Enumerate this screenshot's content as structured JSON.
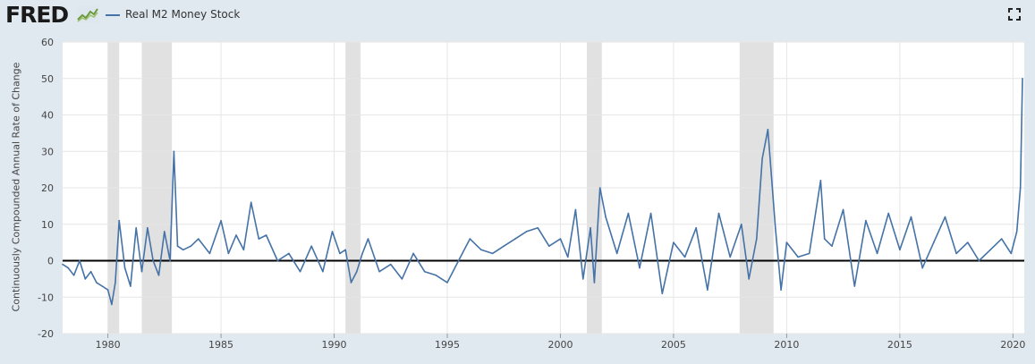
{
  "header": {
    "logo_text": "FRED",
    "logo_icon": "fred-chart-icon",
    "expand_icon": "expand-icon"
  },
  "colors": {
    "series": "#4572a7",
    "recession": "#e1e1e1",
    "background": "#e1e9f0",
    "plot": "#ffffff",
    "zero_line": "#000000"
  },
  "chart_data": {
    "type": "line",
    "xlabel": "",
    "ylabel": "Continuously Compounded Annual Rate of Change",
    "ylim": [
      -20,
      60
    ],
    "xlim": [
      1978.0,
      2020.5
    ],
    "yticks": [
      "-20",
      "-10",
      "0",
      "10",
      "20",
      "30",
      "40",
      "50",
      "60"
    ],
    "xticks": [
      "1980",
      "1985",
      "1990",
      "1995",
      "2000",
      "2005",
      "2010",
      "2015",
      "2020"
    ],
    "grid": true,
    "legend": "top-left",
    "recessions": [
      [
        1980.0,
        1980.5
      ],
      [
        1981.5,
        1982.83
      ],
      [
        1990.5,
        1991.17
      ],
      [
        2001.17,
        2001.83
      ],
      [
        2007.92,
        2009.42
      ]
    ],
    "series": [
      {
        "name": "Real M2 Money Stock",
        "x": [
          1978.0,
          1978.25,
          1978.5,
          1978.75,
          1979.0,
          1979.25,
          1979.5,
          1979.75,
          1980.0,
          1980.17,
          1980.33,
          1980.5,
          1980.75,
          1981.0,
          1981.25,
          1981.5,
          1981.75,
          1982.0,
          1982.25,
          1982.5,
          1982.75,
          1982.92,
          1983.08,
          1983.33,
          1983.67,
          1984.0,
          1984.5,
          1985.0,
          1985.33,
          1985.67,
          1986.0,
          1986.33,
          1986.67,
          1987.0,
          1987.5,
          1988.0,
          1988.5,
          1989.0,
          1989.5,
          1989.92,
          1990.25,
          1990.5,
          1990.75,
          1991.0,
          1991.25,
          1991.5,
          1992.0,
          1992.5,
          1993.0,
          1993.5,
          1994.0,
          1994.5,
          1995.0,
          1995.5,
          1996.0,
          1996.5,
          1997.0,
          1997.5,
          1998.0,
          1998.5,
          1999.0,
          1999.5,
          2000.0,
          2000.33,
          2000.67,
          2001.0,
          2001.33,
          2001.5,
          2001.75,
          2002.0,
          2002.5,
          2003.0,
          2003.5,
          2004.0,
          2004.5,
          2005.0,
          2005.5,
          2006.0,
          2006.5,
          2007.0,
          2007.5,
          2008.0,
          2008.33,
          2008.67,
          2008.92,
          2009.17,
          2009.5,
          2009.75,
          2010.0,
          2010.5,
          2011.0,
          2011.5,
          2011.67,
          2012.0,
          2012.5,
          2013.0,
          2013.5,
          2014.0,
          2014.5,
          2015.0,
          2015.5,
          2016.0,
          2016.5,
          2017.0,
          2017.5,
          2018.0,
          2018.5,
          2019.0,
          2019.5,
          2019.92,
          2020.17,
          2020.33,
          2020.42
        ],
        "values": [
          -1,
          -2,
          -4,
          0,
          -5,
          -3,
          -6,
          -7,
          -8,
          -12,
          -6,
          11,
          -2,
          -7,
          9,
          -3,
          9,
          0,
          -4,
          8,
          0,
          30,
          4,
          3,
          4,
          6,
          2,
          11,
          2,
          7,
          3,
          16,
          6,
          7,
          0,
          2,
          -3,
          4,
          -3,
          8,
          2,
          3,
          -6,
          -3,
          2,
          6,
          -3,
          -1,
          -5,
          2,
          -3,
          -4,
          -6,
          0,
          6,
          3,
          2,
          4,
          6,
          8,
          9,
          4,
          6,
          1,
          14,
          -5,
          9,
          -6,
          20,
          12,
          2,
          13,
          -2,
          13,
          -9,
          5,
          1,
          9,
          -8,
          13,
          1,
          10,
          -5,
          6,
          28,
          36,
          9,
          -8,
          5,
          1,
          2,
          22,
          6,
          4,
          14,
          -7,
          11,
          2,
          13,
          3,
          12,
          -2,
          5,
          12,
          2,
          5,
          0,
          3,
          6,
          2,
          8,
          20,
          50
        ]
      }
    ]
  }
}
